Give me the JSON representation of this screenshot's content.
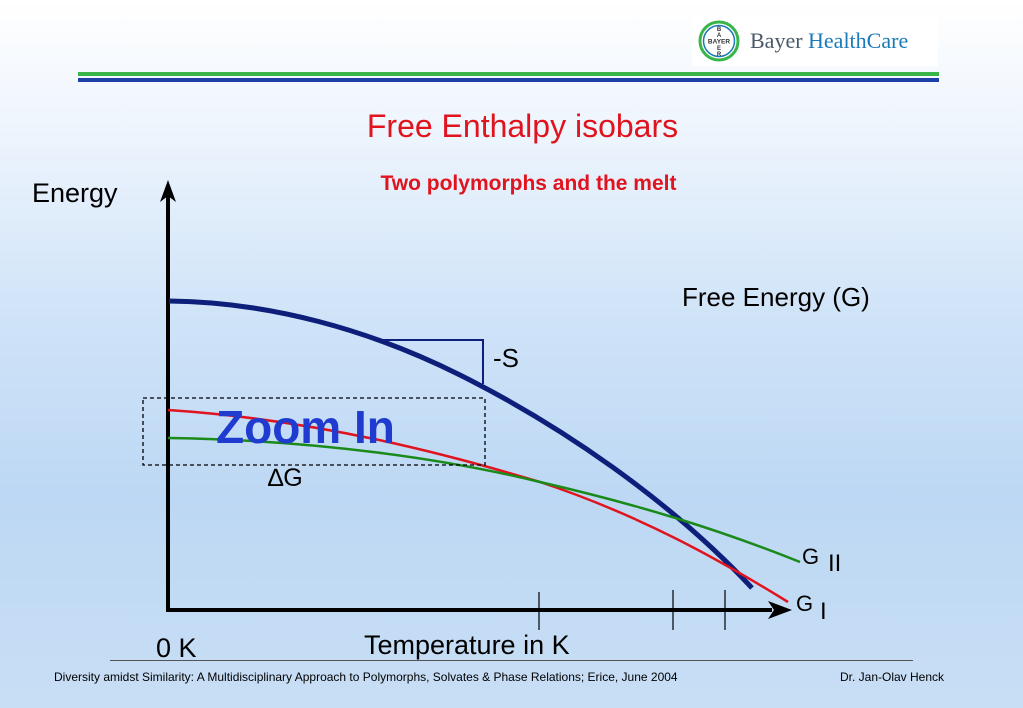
{
  "logo": {
    "cross_text": "BAYER",
    "brand": "Bayer ",
    "division": "HealthCare"
  },
  "slide": {
    "title": "Free Enthalpy isobars",
    "subtitle": "Two polymorphs and the melt"
  },
  "diagram": {
    "y_axis_label": "Energy",
    "x_axis_label": "Temperature in K",
    "origin_label": "0 K",
    "curve_label": "Free Energy (G)",
    "slope_label": "-S",
    "difference_label": "∆G",
    "zoom_label": "Zoom In",
    "form_ii": {
      "symbol": "G",
      "subscript": "II"
    },
    "form_i": {
      "symbol": "G",
      "subscript": "I"
    },
    "colors": {
      "free_energy_curve": "#0d1f7a",
      "form_i_curve": "#e0141e",
      "form_ii_curve": "#1a8a1a"
    }
  },
  "footer": {
    "citation": "Diversity amidst Similarity: A Multidisciplinary Approach to Polymorphs, Solvates & Phase Relations; Erice, June 2004",
    "author": "Dr. Jan-Olav Henck"
  }
}
